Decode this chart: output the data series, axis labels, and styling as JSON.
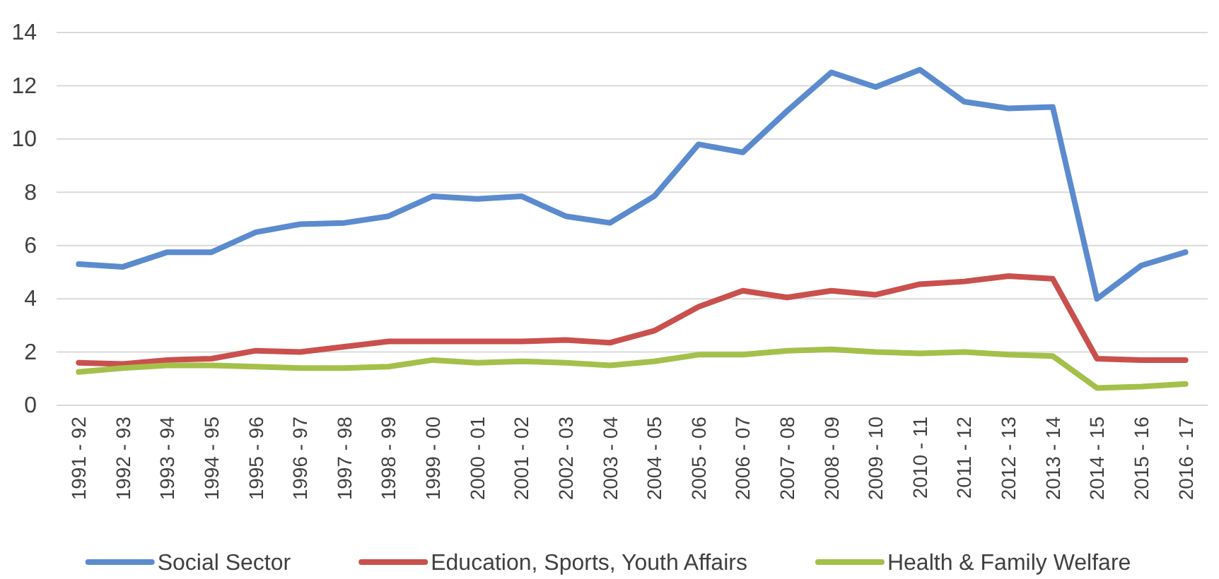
{
  "chart_data": {
    "type": "line",
    "categories": [
      "1991 - 92",
      "1992 - 93",
      "1993 - 94",
      "1994 - 95",
      "1995 - 96",
      "1996 - 97",
      "1997 - 98",
      "1998 - 99",
      "1999 - 00",
      "2000 - 01",
      "2001 - 02",
      "2002 - 03",
      "2003 - 04",
      "2004 - 05",
      "2005 - 06",
      "2006 - 07",
      "2007 - 08",
      "2008 - 09",
      "2009 - 10",
      "2010 - 11",
      "2011 - 12",
      "2012 - 13",
      "2013 - 14",
      "2014 - 15",
      "2015 - 16",
      "2016 - 17"
    ],
    "series": [
      {
        "name": "Social Sector",
        "color": "#5b8bce",
        "values": [
          5.3,
          5.2,
          5.75,
          5.75,
          6.5,
          6.8,
          6.85,
          7.1,
          7.85,
          7.75,
          7.85,
          7.1,
          6.85,
          7.85,
          9.8,
          9.5,
          11.05,
          12.5,
          11.95,
          12.6,
          11.4,
          11.15,
          11.2,
          4.0,
          5.25,
          5.75
        ]
      },
      {
        "name": "Education, Sports, Youth Affairs",
        "color": "#c9504d",
        "values": [
          1.6,
          1.55,
          1.7,
          1.75,
          2.05,
          2.0,
          2.2,
          2.4,
          2.4,
          2.4,
          2.4,
          2.45,
          2.35,
          2.8,
          3.7,
          4.3,
          4.05,
          4.3,
          4.15,
          4.55,
          4.65,
          4.85,
          4.75,
          1.75,
          1.7,
          1.7
        ]
      },
      {
        "name": "Health & Family Welfare",
        "color": "#a4c04a",
        "values": [
          1.25,
          1.4,
          1.5,
          1.5,
          1.45,
          1.4,
          1.4,
          1.45,
          1.7,
          1.6,
          1.65,
          1.6,
          1.5,
          1.65,
          1.9,
          1.9,
          2.05,
          2.1,
          2.0,
          1.95,
          2.0,
          1.9,
          1.85,
          0.65,
          0.7,
          0.8
        ]
      }
    ],
    "ylim": [
      0,
      14
    ],
    "yticks": [
      0,
      2,
      4,
      6,
      8,
      10,
      12,
      14
    ],
    "grid": "y",
    "legend": "bottom",
    "marker": "none",
    "line_style": "solid"
  }
}
